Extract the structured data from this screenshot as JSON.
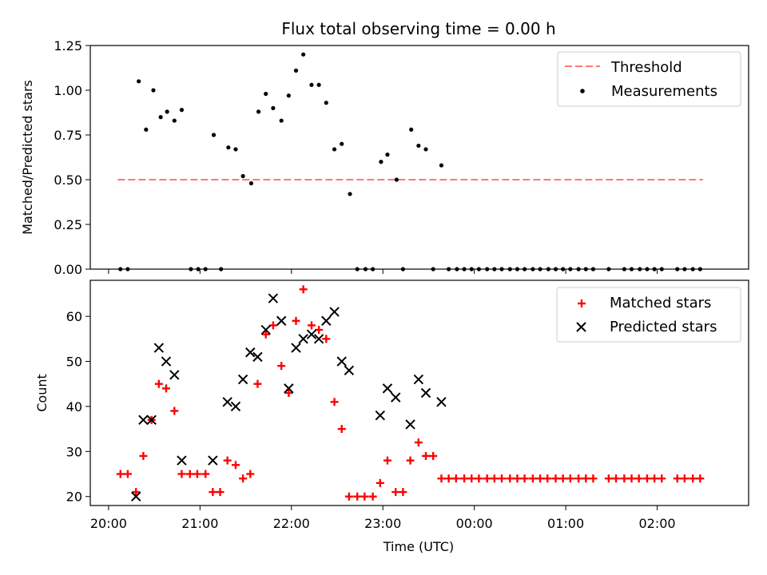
{
  "chart_data": {
    "type": "scatter",
    "title": "Flux total observing time = 0.00 h",
    "xlabel": "Time (UTC)",
    "x_tick_labels": [
      "20:00",
      "21:00",
      "22:00",
      "23:00",
      "00:00",
      "01:00",
      "02:00"
    ],
    "x_tick_hours": [
      0,
      1,
      2,
      3,
      4,
      5,
      6
    ],
    "xlim_hours_since_20:00": [
      -0.2,
      7.0
    ],
    "panels": [
      {
        "ylabel": "Matched/Predicted stars",
        "ylim": [
          0,
          1.25
        ],
        "y_ticks": [
          0.0,
          0.25,
          0.5,
          0.75,
          1.0,
          1.25
        ],
        "y_tick_labels": [
          "0.00",
          "0.25",
          "0.50",
          "0.75",
          "1.00",
          "1.25"
        ],
        "legend_position": "upper right",
        "series": [
          {
            "name": "Threshold",
            "style": "dashed-line",
            "color": "#ff7777",
            "x": [
              0.1,
              6.5
            ],
            "y": [
              0.5,
              0.5
            ]
          },
          {
            "name": "Measurements",
            "style": "dot",
            "color": "#000000",
            "x": [
              0.13,
              0.21,
              0.33,
              0.41,
              0.49,
              0.57,
              0.64,
              0.72,
              0.8,
              0.9,
              0.98,
              1.06,
              1.15,
              1.23,
              1.31,
              1.39,
              1.47,
              1.56,
              1.64,
              1.72,
              1.8,
              1.89,
              1.97,
              2.05,
              2.13,
              2.22,
              2.3,
              2.38,
              2.47,
              2.55,
              2.64,
              2.72,
              2.81,
              2.89,
              2.98,
              3.05,
              3.15,
              3.22,
              3.31,
              3.39,
              3.47,
              3.55,
              3.64,
              3.72,
              3.81,
              3.89,
              3.97,
              4.05,
              4.14,
              4.22,
              4.3,
              4.39,
              4.47,
              4.55,
              4.64,
              4.72,
              4.81,
              4.89,
              4.97,
              5.05,
              5.14,
              5.22,
              5.3,
              5.47,
              5.64,
              5.72,
              5.81,
              5.89,
              5.97,
              6.05,
              6.22,
              6.3,
              6.39,
              6.47
            ],
            "y": [
              0.0,
              0.0,
              1.05,
              0.78,
              1.0,
              0.85,
              0.88,
              0.83,
              0.89,
              0.0,
              0.0,
              0.0,
              0.75,
              0.0,
              0.68,
              0.67,
              0.52,
              0.48,
              0.88,
              0.98,
              0.9,
              0.83,
              0.97,
              1.11,
              1.2,
              1.03,
              1.03,
              0.93,
              0.67,
              0.7,
              0.42,
              0.0,
              0.0,
              0.0,
              0.6,
              0.64,
              0.5,
              0.0,
              0.78,
              0.69,
              0.67,
              0.0,
              0.58,
              0.0,
              0.0,
              0.0,
              0.0,
              0.0,
              0.0,
              0.0,
              0.0,
              0.0,
              0.0,
              0.0,
              0.0,
              0.0,
              0.0,
              0.0,
              0.0,
              0.0,
              0.0,
              0.0,
              0.0,
              0.0,
              0.0,
              0.0,
              0.0,
              0.0,
              0.0,
              0.0,
              0.0,
              0.0,
              0.0,
              0.0
            ]
          }
        ]
      },
      {
        "ylabel": "Count",
        "ylim": [
          18,
          68
        ],
        "y_ticks": [
          20,
          30,
          40,
          50,
          60
        ],
        "y_tick_labels": [
          "20",
          "30",
          "40",
          "50",
          "60"
        ],
        "legend_position": "upper right",
        "series": [
          {
            "name": "Matched stars",
            "marker": "plus",
            "color": "#ff0000",
            "x": [
              0.13,
              0.21,
              0.3,
              0.38,
              0.47,
              0.55,
              0.63,
              0.72,
              0.8,
              0.89,
              0.97,
              1.06,
              1.14,
              1.22,
              1.3,
              1.39,
              1.47,
              1.55,
              1.63,
              1.72,
              1.8,
              1.89,
              1.97,
              2.05,
              2.13,
              2.22,
              2.3,
              2.38,
              2.47,
              2.55,
              2.63,
              2.72,
              2.8,
              2.89,
              2.97,
              3.05,
              3.14,
              3.22,
              3.3,
              3.39,
              3.47,
              3.55,
              3.64,
              3.72,
              3.8,
              3.89,
              3.97,
              4.05,
              4.14,
              4.22,
              4.3,
              4.39,
              4.47,
              4.55,
              4.64,
              4.72,
              4.8,
              4.89,
              4.97,
              5.05,
              5.14,
              5.22,
              5.3,
              5.47,
              5.55,
              5.64,
              5.72,
              5.8,
              5.89,
              5.97,
              6.05,
              6.22,
              6.3,
              6.39,
              6.47
            ],
            "y": [
              25,
              25,
              21,
              29,
              37,
              45,
              44,
              39,
              25,
              25,
              25,
              25,
              21,
              21,
              28,
              27,
              24,
              25,
              45,
              56,
              58,
              49,
              43,
              59,
              66,
              58,
              57,
              55,
              41,
              35,
              20,
              20,
              20,
              20,
              23,
              28,
              21,
              21,
              28,
              32,
              29,
              29,
              24,
              24,
              24,
              24,
              24,
              24,
              24,
              24,
              24,
              24,
              24,
              24,
              24,
              24,
              24,
              24,
              24,
              24,
              24,
              24,
              24,
              24,
              24,
              24,
              24,
              24,
              24,
              24,
              24,
              24,
              24,
              24,
              24
            ]
          },
          {
            "name": "Predicted stars",
            "marker": "x",
            "color": "#000000",
            "x": [
              0.3,
              0.38,
              0.47,
              0.55,
              0.63,
              0.72,
              0.8,
              1.14,
              1.3,
              1.39,
              1.47,
              1.55,
              1.63,
              1.72,
              1.8,
              1.89,
              1.97,
              2.05,
              2.13,
              2.22,
              2.3,
              2.38,
              2.47,
              2.55,
              2.63,
              2.97,
              3.05,
              3.14,
              3.3,
              3.39,
              3.47,
              3.64
            ],
            "y": [
              20,
              37,
              37,
              53,
              50,
              47,
              28,
              28,
              41,
              40,
              46,
              52,
              51,
              57,
              64,
              59,
              44,
              53,
              55,
              56,
              55,
              59,
              61,
              50,
              48,
              38,
              44,
              42,
              36,
              46,
              43,
              41
            ]
          }
        ]
      }
    ]
  }
}
